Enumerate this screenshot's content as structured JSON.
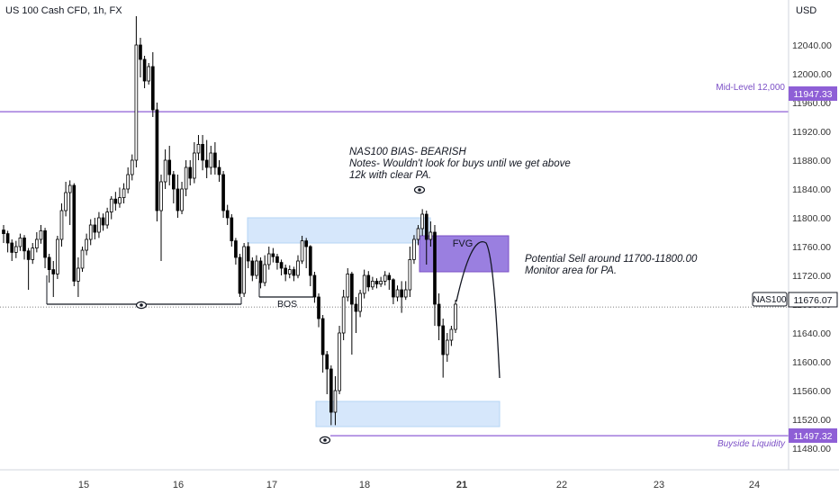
{
  "header": {
    "title": "US 100 Cash CFD, 1h, FX"
  },
  "colors": {
    "bull": "#ffffff",
    "bear": "#000000",
    "wick": "#000000",
    "accent": "#8e5fd6",
    "zone_blue": "#cfe3fb",
    "zone_blue_border": "#a9cdf3",
    "fvg": "#9a7fe0",
    "axis_text": "#333333",
    "grid_line": "#e0e3eb",
    "buyside": "#7b4fc6"
  },
  "chart_data": {
    "type": "candlestick",
    "currency": "USD",
    "ylim": [
      11460,
      12080
    ],
    "y_ticks": [
      "12040.00",
      "12000.00",
      "11960.00",
      "11920.00",
      "11880.00",
      "11840.00",
      "11800.00",
      "11760.00",
      "11720.00",
      "11680.00",
      "11640.00",
      "11600.00",
      "11560.00",
      "11520.00",
      "11480.00"
    ],
    "x_ticks": [
      "15",
      "16",
      "17",
      "18",
      "21",
      "22",
      "23",
      "24"
    ],
    "candles": [
      [
        11783,
        11778,
        11790,
        11765
      ],
      [
        11778,
        11765,
        11782,
        11752
      ],
      [
        11765,
        11752,
        11770,
        11740
      ],
      [
        11752,
        11760,
        11768,
        11744
      ],
      [
        11760,
        11772,
        11778,
        11754
      ],
      [
        11772,
        11754,
        11776,
        11742
      ],
      [
        11754,
        11742,
        11758,
        11700
      ],
      [
        11742,
        11758,
        11765,
        11736
      ],
      [
        11758,
        11770,
        11780,
        11752
      ],
      [
        11770,
        11782,
        11790,
        11764
      ],
      [
        11782,
        11745,
        11786,
        11730
      ],
      [
        11745,
        11728,
        11750,
        11710
      ],
      [
        11728,
        11722,
        11740,
        11690
      ],
      [
        11722,
        11770,
        11775,
        11715
      ],
      [
        11770,
        11810,
        11820,
        11760
      ],
      [
        11810,
        11835,
        11850,
        11802
      ],
      [
        11835,
        11845,
        11852,
        11790
      ],
      [
        11845,
        11712,
        11848,
        11705
      ],
      [
        11712,
        11730,
        11745,
        11690
      ],
      [
        11730,
        11755,
        11760,
        11725
      ],
      [
        11755,
        11770,
        11778,
        11748
      ],
      [
        11770,
        11790,
        11798,
        11762
      ],
      [
        11790,
        11780,
        11800,
        11770
      ],
      [
        11780,
        11800,
        11808,
        11772
      ],
      [
        11800,
        11790,
        11806,
        11782
      ],
      [
        11790,
        11808,
        11814,
        11785
      ],
      [
        11808,
        11826,
        11830,
        11798
      ],
      [
        11826,
        11820,
        11836,
        11810
      ],
      [
        11820,
        11828,
        11842,
        11814
      ],
      [
        11828,
        11840,
        11848,
        11820
      ],
      [
        11840,
        11860,
        11870,
        11834
      ],
      [
        11860,
        11880,
        11888,
        11852
      ],
      [
        11880,
        12040,
        12080,
        11870
      ],
      [
        12040,
        12020,
        12050,
        11995
      ],
      [
        12020,
        11990,
        12025,
        11980
      ],
      [
        11990,
        12010,
        12015,
        11985
      ],
      [
        12010,
        11950,
        12030,
        11940
      ],
      [
        11950,
        11810,
        11960,
        11795
      ],
      [
        11810,
        11850,
        11860,
        11740
      ],
      [
        11850,
        11880,
        11895,
        11840
      ],
      [
        11880,
        11860,
        11900,
        11845
      ],
      [
        11860,
        11840,
        11865,
        11820
      ],
      [
        11840,
        11810,
        11860,
        11800
      ],
      [
        11810,
        11840,
        11850,
        11805
      ],
      [
        11840,
        11870,
        11880,
        11830
      ],
      [
        11870,
        11855,
        11880,
        11845
      ],
      [
        11855,
        11890,
        11905,
        11848
      ],
      [
        11890,
        11902,
        11915,
        11880
      ],
      [
        11902,
        11880,
        11915,
        11866
      ],
      [
        11880,
        11870,
        11908,
        11855
      ],
      [
        11870,
        11890,
        11900,
        11860
      ],
      [
        11890,
        11870,
        11905,
        11860
      ],
      [
        11870,
        11860,
        11880,
        11850
      ],
      [
        11860,
        11810,
        11865,
        11800
      ],
      [
        11810,
        11800,
        11818,
        11790
      ],
      [
        11800,
        11768,
        11805,
        11760
      ],
      [
        11768,
        11745,
        11772,
        11735
      ],
      [
        11745,
        11695,
        11750,
        11690
      ],
      [
        11695,
        11760,
        11765,
        11690
      ],
      [
        11760,
        11740,
        11766,
        11730
      ],
      [
        11740,
        11720,
        11745,
        11712
      ],
      [
        11720,
        11740,
        11748,
        11715
      ],
      [
        11740,
        11710,
        11745,
        11702
      ],
      [
        11710,
        11735,
        11748,
        11705
      ],
      [
        11735,
        11750,
        11760,
        11728
      ],
      [
        11750,
        11746,
        11758,
        11738
      ],
      [
        11746,
        11738,
        11750,
        11728
      ],
      [
        11738,
        11730,
        11742,
        11720
      ],
      [
        11730,
        11722,
        11735,
        11712
      ],
      [
        11722,
        11728,
        11734,
        11716
      ],
      [
        11728,
        11720,
        11732,
        11712
      ],
      [
        11720,
        11740,
        11748,
        11716
      ],
      [
        11740,
        11768,
        11775,
        11736
      ],
      [
        11768,
        11760,
        11772,
        11730
      ],
      [
        11760,
        11720,
        11762,
        11705
      ],
      [
        11720,
        11690,
        11725,
        11682
      ],
      [
        11690,
        11660,
        11695,
        11648
      ],
      [
        11660,
        11610,
        11665,
        11585
      ],
      [
        11610,
        11590,
        11615,
        11555
      ],
      [
        11590,
        11530,
        11595,
        11512
      ],
      [
        11530,
        11560,
        11580,
        11512
      ],
      [
        11560,
        11640,
        11650,
        11555
      ],
      [
        11640,
        11690,
        11700,
        11630
      ],
      [
        11690,
        11722,
        11730,
        11684
      ],
      [
        11722,
        11680,
        11725,
        11610
      ],
      [
        11680,
        11670,
        11690,
        11640
      ],
      [
        11670,
        11695,
        11700,
        11662
      ],
      [
        11695,
        11720,
        11728,
        11688
      ],
      [
        11720,
        11704,
        11726,
        11698
      ],
      [
        11704,
        11712,
        11718,
        11700
      ],
      [
        11712,
        11708,
        11716,
        11702
      ],
      [
        11708,
        11712,
        11718,
        11704
      ],
      [
        11712,
        11720,
        11726,
        11706
      ],
      [
        11720,
        11714,
        11724,
        11700
      ],
      [
        11714,
        11690,
        11716,
        11680
      ],
      [
        11690,
        11700,
        11706,
        11684
      ],
      [
        11700,
        11690,
        11712,
        11668
      ],
      [
        11690,
        11700,
        11712,
        11686
      ],
      [
        11700,
        11742,
        11760,
        11690
      ],
      [
        11742,
        11770,
        11776,
        11736
      ],
      [
        11770,
        11785,
        11790,
        11762
      ],
      [
        11785,
        11805,
        11812,
        11775
      ],
      [
        11805,
        11770,
        11810,
        11735
      ],
      [
        11770,
        11780,
        11795,
        11760
      ],
      [
        11780,
        11680,
        11790,
        11650
      ],
      [
        11680,
        11650,
        11695,
        11630
      ],
      [
        11650,
        11610,
        11660,
        11578
      ],
      [
        11610,
        11630,
        11640,
        11600
      ],
      [
        11630,
        11645,
        11650,
        11622
      ],
      [
        11645,
        11680,
        11686,
        11640
      ]
    ],
    "annotations": {
      "mid_level_label": "Mid-Level 12,000",
      "mid_level_price": "11947.33",
      "nas_label": "NAS100",
      "nas_price": "11676.07",
      "buyside_label": "Buyside Liquidity",
      "buyside_price": "11497.32",
      "bos_label": "BOS",
      "fvg_label": "FVG",
      "bias_title": "NAS100 BIAS- BEARISH",
      "notes_line1": "Notes- Wouldn't look for buys until we get above",
      "notes_line2": "12k with clear PA.",
      "sell_line1": "Potential Sell around 11700-11800.00",
      "sell_line2": "Monitor area for PA."
    }
  }
}
